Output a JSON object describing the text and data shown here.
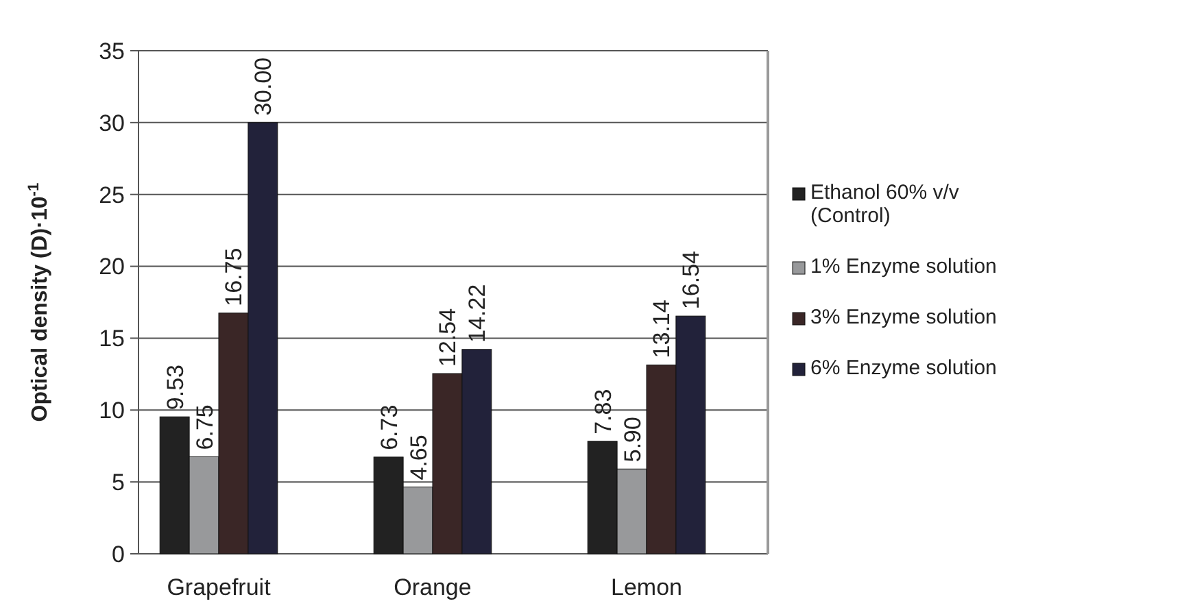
{
  "chart_data": {
    "type": "bar",
    "ylabel": "Optical density (D)·10$^{-1}$",
    "categories": [
      "Grapefruit",
      "Orange",
      "Lemon"
    ],
    "series": [
      {
        "name": "Ethanol 60% v/v (Control)",
        "color": "#222222",
        "values": [
          9.53,
          6.73,
          7.83
        ],
        "value_labels": [
          "9.53",
          "6.73",
          "7.83"
        ]
      },
      {
        "name": "1% Enzyme solution",
        "color": "#98999b",
        "values": [
          6.75,
          4.65,
          5.9
        ],
        "value_labels": [
          "6.75",
          "4.65",
          "5.90"
        ]
      },
      {
        "name": "3% Enzyme solution",
        "color": "#3a2626",
        "values": [
          16.75,
          12.54,
          13.14
        ],
        "value_labels": [
          "16.75",
          "12.54",
          "13.14"
        ]
      },
      {
        "name": "6% Enzyme solution",
        "color": "#22223a",
        "values": [
          30,
          14.22,
          16.54
        ],
        "value_labels": [
          "30.00",
          "14.22",
          "16.54"
        ]
      }
    ],
    "ylim": [
      0,
      35
    ],
    "yticks": [
      0,
      5,
      10,
      15,
      20,
      25,
      30,
      35
    ],
    "grid": "y",
    "legend": "right"
  }
}
